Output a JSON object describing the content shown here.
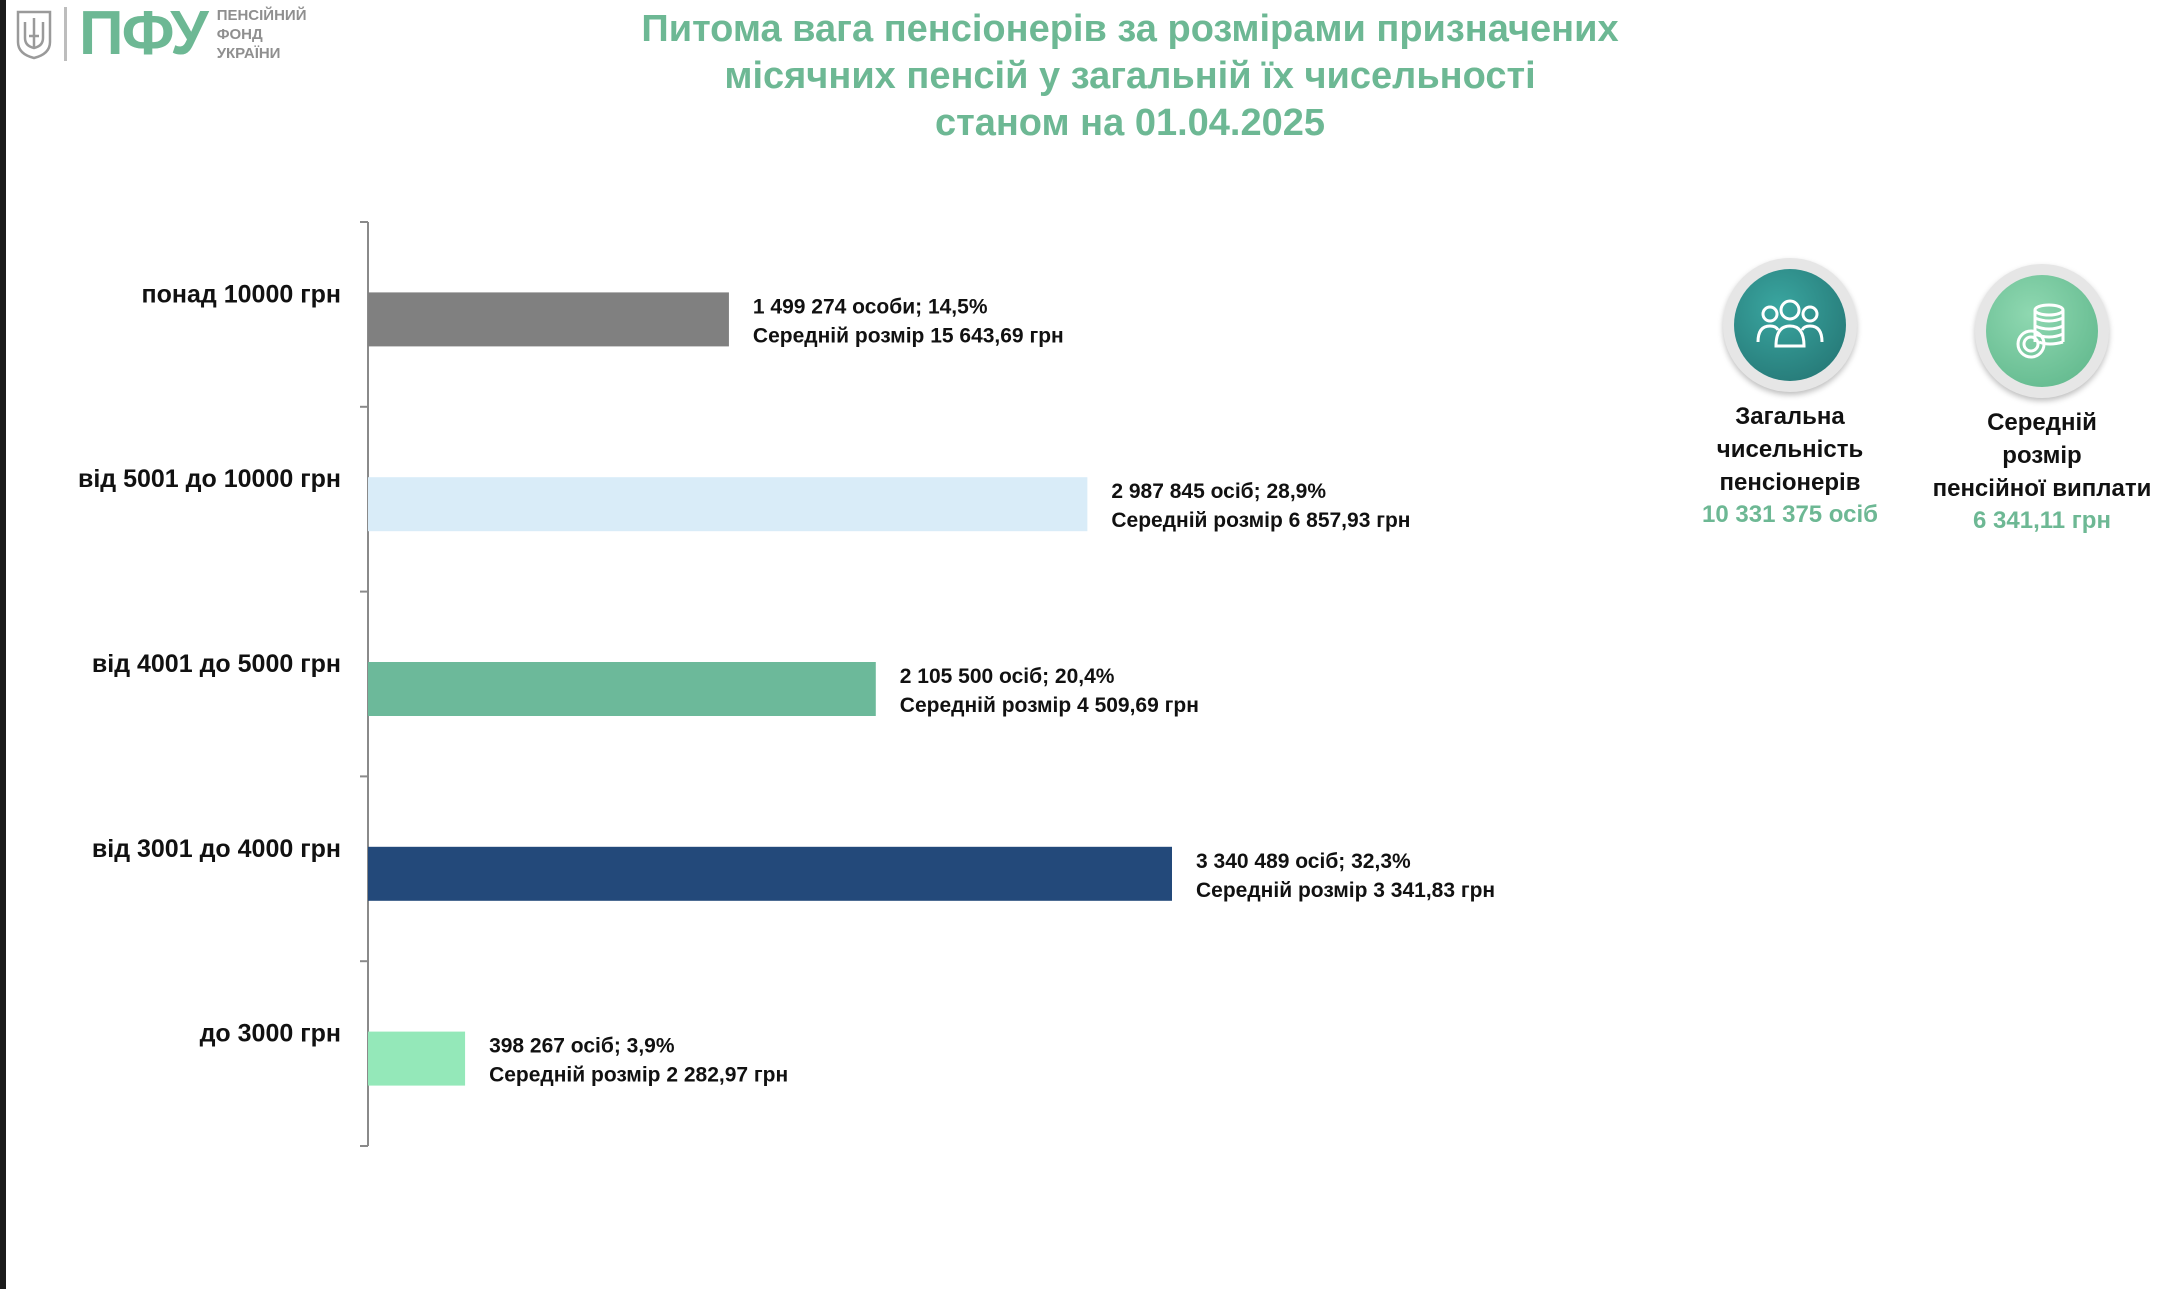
{
  "logo": {
    "abbr": "ПФУ",
    "name_lines": [
      "ПЕНСІЙНИЙ",
      "ФОНД",
      "УКРАЇНИ"
    ]
  },
  "title_lines": [
    "Питома вага пенсіонерів за розмірами призначених",
    "місячних пенсій у загальній їх чисельності",
    "станом на 01.04.2025"
  ],
  "kpis": [
    {
      "label_lines": [
        "Загальна",
        "чисельність",
        "пенсіонерів"
      ],
      "value": "10 331 375 осіб",
      "icon": "people-group-icon",
      "color": "#2f8b8b"
    },
    {
      "label_lines": [
        "Середній",
        "розмір",
        "пенсійної виплати"
      ],
      "value": "6 341,11 грн",
      "icon": "coin-stack-icon",
      "color": "#6cc39a"
    }
  ],
  "colors": {
    "title": "#6db894",
    "accent": "#6db894",
    "axis": "#8a8a8a"
  },
  "chart_data": {
    "type": "bar",
    "orientation": "horizontal",
    "categories": [
      "понад 10000 грн",
      "від 5001 до 10000 грн",
      "від 4001 до 5000 грн",
      "від 3001 до 4000 грн",
      "до 3000 грн"
    ],
    "values": [
      14.5,
      28.9,
      20.4,
      32.3,
      3.9
    ],
    "colors": [
      "#808080",
      "#d9ecf8",
      "#6cb99a",
      "#23497a",
      "#94e8b9"
    ],
    "label_line1": [
      "1 499 274 особи;  14,5%",
      "2 987 845 осіб; 28,9%",
      "2 105 500 осіб; 20,4%",
      "3 340 489 осіб; 32,3%",
      "398 267 осіб; 3,9%"
    ],
    "label_line2": [
      "Середній розмір 15 643,69 грн",
      "Середній розмір 6 857,93 грн",
      "Середній розмір 4 509,69 грн",
      "Середній розмір 3 341,83 грн",
      "Середній розмір 2 282,97 грн"
    ],
    "title": "",
    "xlabel": "",
    "ylabel": "",
    "xlim": [
      0,
      32.3
    ],
    "grid": false,
    "legend": "none"
  }
}
